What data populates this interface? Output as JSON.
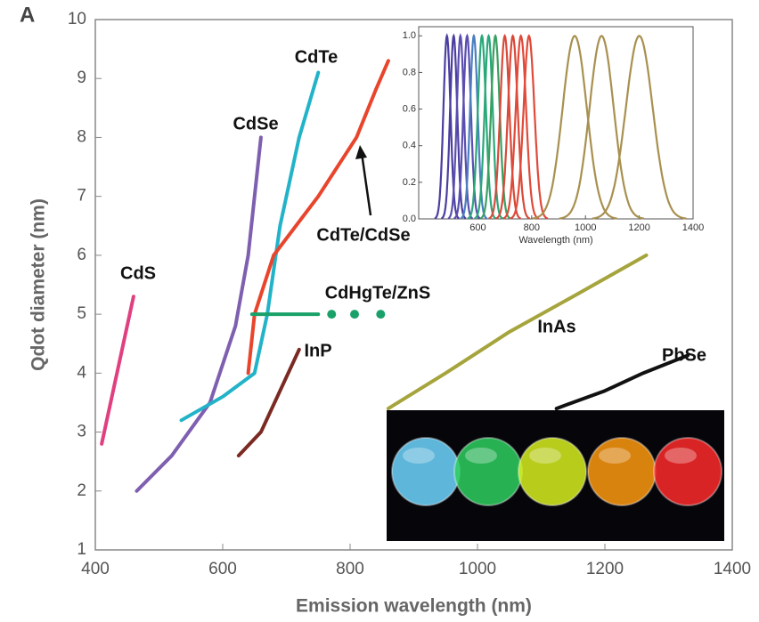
{
  "panel_label": "A",
  "chart_data": [
    {
      "type": "line",
      "x_label": "Emission wavelength (nm)",
      "y_label": "Qdot diameter (nm)",
      "xlim": [
        400,
        1400
      ],
      "xticks": [
        400,
        600,
        800,
        1000,
        1200,
        1400
      ],
      "ylim": [
        1,
        10
      ],
      "yticks": [
        1,
        2,
        3,
        4,
        5,
        6,
        7,
        8,
        9,
        10
      ],
      "series": [
        {
          "name": "CdS",
          "color": "#e0407f",
          "x": [
            410,
            430,
            450,
            460
          ],
          "values": [
            2.8,
            3.8,
            4.8,
            5.3
          ]
        },
        {
          "name": "CdSe",
          "color": "#7e5fb0",
          "x": [
            465,
            520,
            580,
            620,
            640,
            650,
            660
          ],
          "values": [
            2.0,
            2.6,
            3.5,
            4.8,
            6.0,
            7.0,
            8.0
          ]
        },
        {
          "name": "CdTe",
          "color": "#22b3c9",
          "x": [
            535,
            600,
            650,
            670,
            690,
            720,
            750
          ],
          "values": [
            3.2,
            3.6,
            4.0,
            5.0,
            6.5,
            8.0,
            9.1
          ]
        },
        {
          "name": "CdTe/CdSe",
          "color": "#e8452c",
          "x": [
            640,
            650,
            680,
            750,
            810,
            840,
            860
          ],
          "values": [
            4.0,
            5.0,
            6.0,
            7.0,
            8.0,
            8.8,
            9.3
          ]
        },
        {
          "name": "CdHgTe/ZnS",
          "color": "#1aa16a",
          "x": [
            646,
            750
          ],
          "values": [
            5.0,
            5.0
          ],
          "dots": {
            "x": [
              771,
              807,
              848
            ],
            "values": [
              5.0,
              5.0,
              5.0
            ]
          }
        },
        {
          "name": "InP",
          "color": "#7a2a22",
          "x": [
            625,
            660,
            690,
            720
          ],
          "values": [
            2.6,
            3.0,
            3.7,
            4.4
          ]
        },
        {
          "name": "InAs",
          "color": "#a6a43c",
          "x": [
            860,
            950,
            1050,
            1150,
            1265
          ],
          "values": [
            3.4,
            4.0,
            4.7,
            5.3,
            6.0
          ]
        },
        {
          "name": "PbSe",
          "color": "#111111",
          "x": [
            1124,
            1200,
            1260,
            1330
          ],
          "values": [
            3.4,
            3.7,
            4.0,
            4.3
          ]
        }
      ]
    },
    {
      "type": "spectra",
      "x_label": "Wavelength (nm)",
      "xlim": [
        380,
        1400
      ],
      "xticks": [
        600,
        800,
        1000,
        1200,
        1400
      ],
      "ylim": [
        0,
        1.05
      ],
      "yticks": [
        {
          "value": 0,
          "label": "0.0"
        },
        0.2,
        0.4,
        0.6,
        0.8,
        {
          "value": 1,
          "label": "1.0"
        }
      ],
      "peaks": [
        {
          "color": "#4a3fa0",
          "center": 485,
          "width": 13
        },
        {
          "color": "#4a3fa0",
          "center": 510,
          "width": 13
        },
        {
          "color": "#5a4fb0",
          "center": 535,
          "width": 13
        },
        {
          "color": "#5a4fb0",
          "center": 560,
          "width": 14
        },
        {
          "color": "#4a7fc0",
          "center": 585,
          "width": 14
        },
        {
          "color": "#2aa87a",
          "center": 615,
          "width": 15
        },
        {
          "color": "#2aa87a",
          "center": 640,
          "width": 15
        },
        {
          "color": "#3aa060",
          "center": 665,
          "width": 16
        },
        {
          "color": "#d84a3a",
          "center": 700,
          "width": 17
        },
        {
          "color": "#d84a3a",
          "center": 730,
          "width": 18
        },
        {
          "color": "#e04a3a",
          "center": 760,
          "width": 19
        },
        {
          "color": "#e04a3a",
          "center": 790,
          "width": 20
        },
        {
          "color": "#a89050",
          "center": 960,
          "width": 45
        },
        {
          "color": "#a89050",
          "center": 1060,
          "width": 45
        },
        {
          "color": "#a89050",
          "center": 1200,
          "width": 50
        }
      ]
    }
  ]
}
